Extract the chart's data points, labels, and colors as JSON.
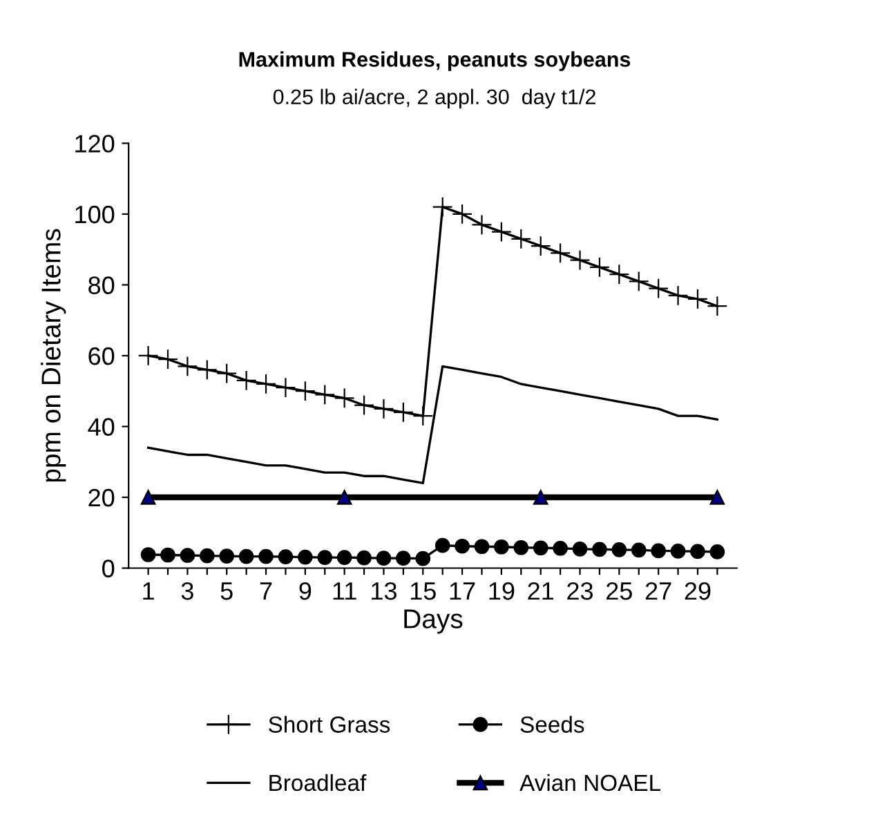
{
  "chart_data": {
    "type": "line",
    "title": "Maximum Residues, peanuts soybeans",
    "subtitle": "0.25 lb ai/acre, 2 appl. 30  day t1/2",
    "xlabel": "Days",
    "ylabel": "ppm on Dietary Items",
    "x": [
      1,
      2,
      3,
      4,
      5,
      6,
      7,
      8,
      9,
      10,
      11,
      12,
      13,
      14,
      15,
      16,
      17,
      18,
      19,
      20,
      21,
      22,
      23,
      24,
      25,
      26,
      27,
      28,
      29,
      30
    ],
    "xlim": [
      0,
      31
    ],
    "xticks": [
      1,
      {
        "value": 2,
        "label": null
      },
      3,
      {
        "value": 4,
        "label": null
      },
      5,
      {
        "value": 6,
        "label": null
      },
      7,
      {
        "value": 8,
        "label": null
      },
      9,
      {
        "value": 10,
        "label": null
      },
      11,
      {
        "value": 12,
        "label": null
      },
      13,
      {
        "value": 14,
        "label": null
      },
      15,
      {
        "value": 16,
        "label": null
      },
      17,
      {
        "value": 18,
        "label": null
      },
      19,
      {
        "value": 20,
        "label": null
      },
      21,
      {
        "value": 22,
        "label": null
      },
      23,
      {
        "value": 24,
        "label": null
      },
      25,
      {
        "value": 26,
        "label": null
      },
      27,
      {
        "value": 28,
        "label": null
      },
      29,
      {
        "value": 30,
        "label": null
      }
    ],
    "ylim": [
      0,
      120
    ],
    "yticks": [
      0,
      20,
      40,
      60,
      80,
      100,
      120
    ],
    "grid": false,
    "legend": "bottom",
    "series": [
      {
        "name": "Short Grass",
        "color": "#000000",
        "marker": "cross",
        "values": [
          60,
          59,
          57,
          56,
          55,
          53,
          52,
          51,
          50,
          49,
          48,
          46,
          45,
          44,
          43,
          102,
          100,
          97,
          95,
          93,
          91,
          89,
          87,
          85,
          83,
          81,
          79,
          77,
          76,
          74
        ]
      },
      {
        "name": "Broadleaf",
        "color": "#000000",
        "marker": "none",
        "values": [
          34,
          33,
          32,
          32,
          31,
          30,
          29,
          29,
          28,
          27,
          27,
          26,
          26,
          25,
          24,
          57,
          56,
          55,
          54,
          52,
          51,
          50,
          49,
          48,
          47,
          46,
          45,
          43,
          43,
          42
        ]
      },
      {
        "name": "Seeds",
        "color": "#000000",
        "marker": "circle",
        "values": [
          3.8,
          3.7,
          3.6,
          3.5,
          3.4,
          3.3,
          3.3,
          3.2,
          3.1,
          3.0,
          3.0,
          2.9,
          2.8,
          2.8,
          2.7,
          6.4,
          6.2,
          6.1,
          6.0,
          5.8,
          5.7,
          5.6,
          5.4,
          5.3,
          5.2,
          5.1,
          4.9,
          4.8,
          4.7,
          4.6
        ]
      },
      {
        "name": "Avian NOAEL",
        "color": "#000080",
        "marker": "triangle",
        "x": [
          1,
          11,
          21,
          30
        ],
        "values": [
          20,
          20,
          20,
          20
        ]
      }
    ]
  }
}
